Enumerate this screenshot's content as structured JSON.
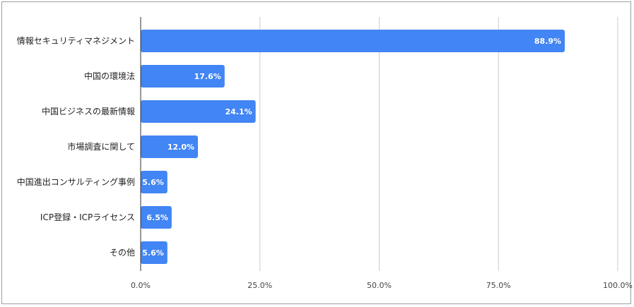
{
  "chart_data": {
    "type": "bar",
    "orientation": "horizontal",
    "categories": [
      "情報セキュリティマネジメント",
      "中国の環境法",
      "中国ビジネスの最新情報",
      "市場調査に関して",
      "中国進出コンサルティング事例",
      "ICP登録・ICPライセンス",
      "その他"
    ],
    "values": [
      88.9,
      17.6,
      24.1,
      12.0,
      5.6,
      6.5,
      5.6
    ],
    "data_labels": [
      "88.9%",
      "17.6%",
      "24.1%",
      "12.0%",
      "5.6%",
      "6.5%",
      "5.6%"
    ],
    "xlim": [
      0,
      100
    ],
    "xticks": [
      0,
      25,
      50,
      75,
      100
    ],
    "xtick_labels": [
      "0.0%",
      "25.0%",
      "50.0%",
      "75.0%",
      "100.0%"
    ],
    "grid": true,
    "bar_color": "#4285f4",
    "grid_color": "#cccccc",
    "axis_color": "#333333"
  }
}
